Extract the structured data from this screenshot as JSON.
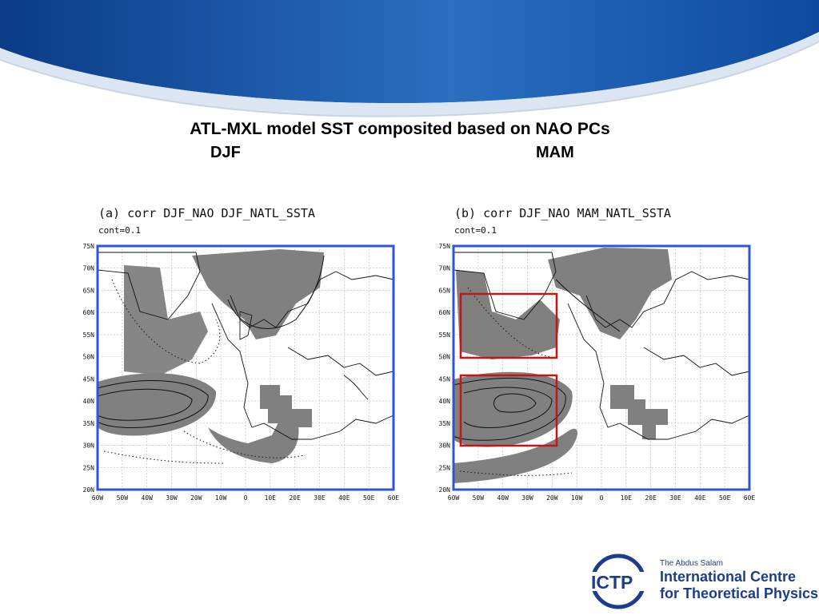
{
  "slide": {
    "title": "ATL-MXL model SST composited based on NAO PCs",
    "season_left": "DJF",
    "season_right": "MAM"
  },
  "panels": [
    {
      "caption": "(a) corr DJF_NAO DJF_NATL_SSTA",
      "contour": "cont=0.1",
      "lat_labels": [
        "75N",
        "70N",
        "65N",
        "60N",
        "55N",
        "50N",
        "45N",
        "40N",
        "35N",
        "30N",
        "25N",
        "20N"
      ],
      "lon_labels": [
        "60W",
        "50W",
        "40W",
        "30W",
        "20W",
        "10W",
        "0",
        "10E",
        "20E",
        "30E",
        "40E",
        "50E",
        "60E"
      ]
    },
    {
      "caption": "(b) corr DJF_NAO MAM_NATL_SSTA",
      "contour": "cont=0.1",
      "lat_labels": [
        "75N",
        "70N",
        "65N",
        "60N",
        "55N",
        "50N",
        "45N",
        "40N",
        "35N",
        "30N",
        "25N",
        "20N"
      ],
      "lon_labels": [
        "60W",
        "50W",
        "40W",
        "30W",
        "20W",
        "10W",
        "0",
        "10E",
        "20E",
        "30E",
        "40E",
        "50E",
        "60E"
      ]
    }
  ],
  "colors": {
    "frame": "#2f55d4",
    "shading": "#808080",
    "box": "#c81414",
    "header_blue": "#1e5aa8",
    "logo_blue": "#1d3d8c"
  },
  "logo": {
    "small": "The Abdus Salam",
    "line1": "International Centre",
    "line2": "for Theoretical Physics",
    "mark": "ICTP"
  }
}
